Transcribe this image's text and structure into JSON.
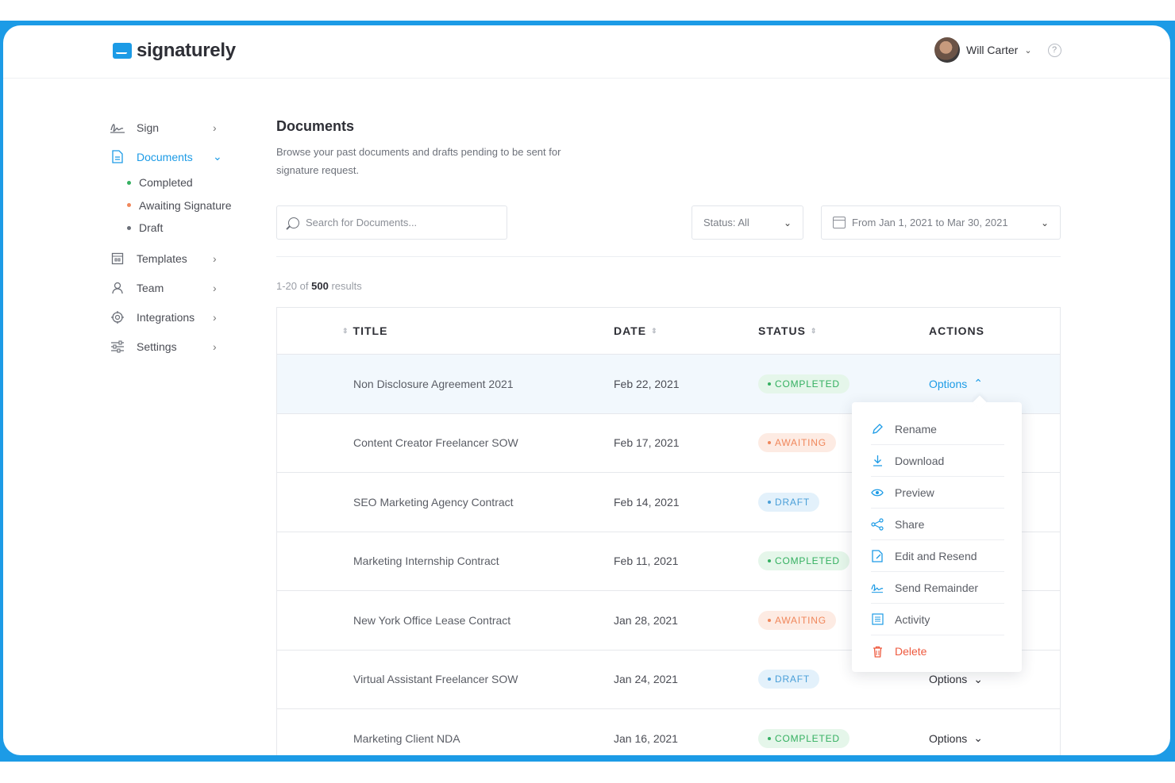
{
  "brand": {
    "name": "signaturely"
  },
  "user": {
    "name": "Will Carter",
    "help": "?"
  },
  "sidebar": {
    "items": [
      {
        "label": "Sign",
        "icon": "signature-icon"
      },
      {
        "label": "Documents",
        "icon": "document-icon"
      },
      {
        "label": "Templates",
        "icon": "template-icon"
      },
      {
        "label": "Team",
        "icon": "user-icon"
      },
      {
        "label": "Integrations",
        "icon": "integrations-icon"
      },
      {
        "label": "Settings",
        "icon": "sliders-icon"
      }
    ],
    "documents_sub": [
      {
        "label": "Completed",
        "color": "#35b061"
      },
      {
        "label": "Awaiting Signature",
        "color": "#f0875b"
      },
      {
        "label": "Draft",
        "color": "#6b6f78"
      }
    ]
  },
  "main": {
    "title": "Documents",
    "description": "Browse your past documents and drafts pending to be sent for signature request.",
    "search_placeholder": "Search for Documents...",
    "status_filter": "Status: All",
    "date_filter": "From Jan 1, 2021 to Mar 30, 2021",
    "results": {
      "range": "1-20 of",
      "total": "500",
      "suffix": "results"
    }
  },
  "table": {
    "headers": {
      "title": "TITLE",
      "date": "DATE",
      "status": "STATUS",
      "actions": "ACTIONS"
    },
    "rows": [
      {
        "title": "Non Disclosure Agreement 2021",
        "date": "Feb 22, 2021",
        "status": "COMPLETED",
        "action": "Options"
      },
      {
        "title": "Content Creator Freelancer SOW",
        "date": "Feb 17, 2021",
        "status": "AWAITING",
        "action": "Options"
      },
      {
        "title": "SEO Marketing Agency Contract",
        "date": "Feb 14, 2021",
        "status": "DRAFT",
        "action": "Options"
      },
      {
        "title": "Marketing Internship Contract",
        "date": "Feb 11, 2021",
        "status": "COMPLETED",
        "action": "Options"
      },
      {
        "title": "New York Office Lease Contract",
        "date": "Jan 28, 2021",
        "status": "AWAITING",
        "action": "Options"
      },
      {
        "title": "Virtual Assistant Freelancer SOW",
        "date": "Jan 24, 2021",
        "status": "DRAFT",
        "action": "Options"
      },
      {
        "title": "Marketing Client NDA",
        "date": "Jan 16, 2021",
        "status": "COMPLETED",
        "action": "Options"
      }
    ]
  },
  "options_menu": [
    {
      "label": "Rename",
      "icon": "pencil-icon"
    },
    {
      "label": "Download",
      "icon": "download-icon"
    },
    {
      "label": "Preview",
      "icon": "eye-icon"
    },
    {
      "label": "Share",
      "icon": "share-icon"
    },
    {
      "label": "Edit and Resend",
      "icon": "edit-document-icon"
    },
    {
      "label": "Send Remainder",
      "icon": "signature-icon"
    },
    {
      "label": "Activity",
      "icon": "list-icon"
    },
    {
      "label": "Delete",
      "icon": "trash-icon"
    }
  ],
  "colors": {
    "accent": "#1c9be6",
    "completed": "#35b061",
    "awaiting": "#f0875b",
    "draft": "#4a9fd8",
    "danger": "#ee5a3f"
  }
}
